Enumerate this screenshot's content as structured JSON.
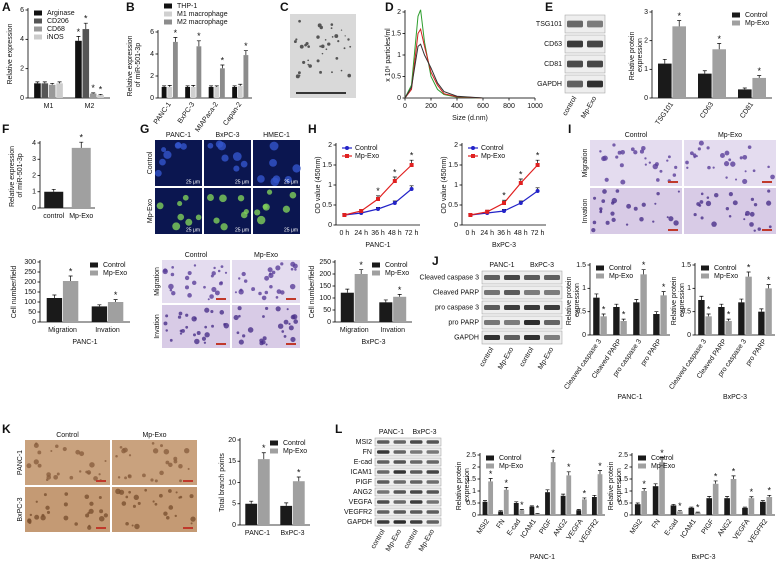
{
  "panel_labels": [
    "A",
    "B",
    "C",
    "D",
    "E",
    "F",
    "G",
    "H",
    "I",
    "J",
    "K",
    "L"
  ],
  "image_panels": [
    {
      "columns": [
        "PANC-1",
        "BxPC-3",
        "HMEC-1"
      ],
      "rows": [
        "Control",
        "Mp-Exo"
      ],
      "scale_label": "25 μm"
    },
    {
      "columns": [
        "Control",
        "Mp-Exo"
      ],
      "rows": [
        "Migration",
        "Invation"
      ]
    },
    {
      "columns": [
        "Control",
        "Mp-Exo"
      ],
      "rows": [
        "Migration",
        "Invation"
      ]
    },
    {
      "columns": [
        "Control",
        "Mp-Exo"
      ],
      "rows": [
        "PANC-1",
        "BxPC-3"
      ]
    }
  ],
  "blots": [
    {
      "rows": [
        "TSG101",
        "CD63",
        "CD81",
        "GAPDH"
      ],
      "lanes": [
        "control",
        "Mp-Exo"
      ]
    },
    {
      "groups": [
        "PANC-1",
        "BxPC-3"
      ],
      "rows": [
        "Cleaved caspase 3",
        "Cleaved PARP",
        "pro caspase 3",
        "pro PARP",
        "GAPDH"
      ],
      "lanes": [
        "control",
        "Mp-Exo",
        "control",
        "Mp-Exo"
      ]
    },
    {
      "groups": [
        "PANC-1",
        "BxPC-3"
      ],
      "rows": [
        "MSI2",
        "FN",
        "E-cad",
        "ICAM1",
        "PIGF",
        "ANG2",
        "VEGFA",
        "VEGFR2",
        "GAPDH"
      ],
      "lanes": [
        "control",
        "Mp-Exo",
        "control",
        "Mp-Exo"
      ]
    }
  ],
  "chart_data": [
    {
      "type": "bar",
      "ylabel": "Relative expression",
      "categories": [
        "M1",
        "M2"
      ],
      "ylim": [
        0,
        6
      ],
      "yticks": [
        0,
        2,
        4,
        6
      ],
      "legend": "upper-left",
      "series": [
        {
          "name": "Arginase",
          "color": "#111111",
          "values": [
            1,
            3.9
          ],
          "errors": [
            0.1,
            0.3
          ],
          "significance": [
            null,
            "*"
          ]
        },
        {
          "name": "CD206",
          "color": "#555555",
          "values": [
            1,
            4.7
          ],
          "errors": [
            0.1,
            0.4
          ],
          "significance": [
            null,
            "*"
          ]
        },
        {
          "name": "CD68",
          "color": "#999999",
          "values": [
            0.9,
            0.3
          ],
          "errors": [
            0.1,
            0.05
          ],
          "significance": [
            null,
            "*"
          ]
        },
        {
          "name": "iNOS",
          "color": "#cccccc",
          "values": [
            1,
            0.2
          ],
          "errors": [
            0.1,
            0.05
          ],
          "significance": [
            null,
            "*"
          ]
        }
      ]
    },
    {
      "type": "bar",
      "ylabel": "Relative expression of miR-501-3p",
      "categories": [
        "PANC-1",
        "BxPC-3",
        "MIAPaca-2",
        "Capan-2"
      ],
      "ylim": [
        0,
        6
      ],
      "yticks": [
        0,
        2,
        4,
        6
      ],
      "legend": "top",
      "series": [
        {
          "name": "THP-1",
          "color": "#111111",
          "values": [
            1,
            1,
            1,
            1
          ],
          "errors": [
            0.1,
            0.1,
            0.1,
            0.1
          ]
        },
        {
          "name": "M1 macrophage",
          "color": "#d0d0d0",
          "values": [
            1,
            1,
            1,
            1.1
          ],
          "errors": [
            0.15,
            0.15,
            0.1,
            0.15
          ]
        },
        {
          "name": "M2 macrophage",
          "color": "#8c8c8c",
          "values": [
            5.1,
            4.7,
            2.7,
            3.9
          ],
          "errors": [
            0.4,
            0.5,
            0.3,
            0.4
          ],
          "significance": [
            "*",
            "*",
            "*",
            "*"
          ]
        }
      ]
    },
    {
      "type": "line",
      "ylabel": "x 10⁶ particles/ml",
      "xlabel": "Size (d.nm)",
      "x": [
        0,
        50,
        100,
        120,
        150,
        200,
        250,
        300,
        400,
        600,
        1000
      ],
      "xlim": [
        0,
        1000
      ],
      "xticks": [
        0,
        200,
        400,
        600,
        800,
        1000
      ],
      "ylim": [
        0,
        2
      ],
      "yticks": [
        0,
        0.5,
        1,
        1.5,
        2
      ],
      "series": [
        {
          "color": "#2e9e2e",
          "values": [
            0,
            0.3,
            1.9,
            2.05,
            1.3,
            0.5,
            0.2,
            0.08,
            0.02,
            0,
            0
          ]
        },
        {
          "color": "#d02020",
          "values": [
            0,
            0.2,
            1.5,
            1.6,
            1.2,
            0.6,
            0.3,
            0.1,
            0.03,
            0,
            0
          ]
        },
        {
          "color": "#333333",
          "values": [
            0,
            0.25,
            1.2,
            1.25,
            1,
            0.7,
            0.35,
            0.15,
            0.04,
            0,
            0
          ]
        }
      ]
    },
    {
      "type": "bar",
      "ylabel": "Relative protein expression",
      "categories": [
        "TSG101",
        "CD63",
        "CD81"
      ],
      "ylim": [
        0,
        3
      ],
      "yticks": [
        0,
        1,
        2,
        3
      ],
      "legend": "upper-right",
      "series": [
        {
          "name": "Control",
          "color": "#1a1a1a",
          "values": [
            1.2,
            0.85,
            0.3
          ],
          "errors": [
            0.15,
            0.1,
            0.05
          ]
        },
        {
          "name": "Mp-Exo",
          "color": "#a0a0a0",
          "values": [
            2.5,
            1.7,
            0.7
          ],
          "errors": [
            0.2,
            0.2,
            0.08
          ],
          "significance": [
            "*",
            "*",
            "*"
          ]
        }
      ]
    },
    {
      "type": "bar",
      "ylabel": "Relative expression of miR-501-3p",
      "categories": [
        "control",
        "Mp-Exo"
      ],
      "ylim": [
        0,
        4
      ],
      "yticks": [
        0,
        1,
        2,
        3,
        4
      ],
      "series": [
        {
          "colors": [
            "#1a1a1a",
            "#a0a0a0"
          ],
          "values": [
            1,
            3.7
          ],
          "errors": [
            0.15,
            0.35
          ],
          "significance": [
            null,
            "*"
          ]
        }
      ]
    },
    {
      "type": "line",
      "ylabel": "OD value (450nm)",
      "xlabel": "PANC-1",
      "categories": [
        "0 h",
        "24 h",
        "36 h",
        "48 h",
        "72 h"
      ],
      "ylim": [
        0,
        2
      ],
      "yticks": [
        0,
        0.5,
        1,
        1.5,
        2
      ],
      "legend": "upper-left",
      "series": [
        {
          "name": "Control",
          "color": "#2323c8",
          "values": [
            0.25,
            0.3,
            0.4,
            0.55,
            0.9
          ],
          "errors": [
            0.03,
            0.03,
            0.04,
            0.05,
            0.08
          ]
        },
        {
          "name": "Mp-Exo",
          "color": "#e02020",
          "values": [
            0.25,
            0.35,
            0.65,
            1.1,
            1.5
          ],
          "errors": [
            0.03,
            0.04,
            0.08,
            0.1,
            0.12
          ],
          "significance": [
            null,
            null,
            "*",
            "*",
            "*"
          ]
        }
      ]
    },
    {
      "type": "line",
      "ylabel": "OD value (450nm)",
      "xlabel": "BxPC-3",
      "categories": [
        "0 h",
        "24 h",
        "36 h",
        "48 h",
        "72 h"
      ],
      "ylim": [
        0,
        2
      ],
      "yticks": [
        0,
        0.5,
        1,
        1.5,
        2
      ],
      "legend": "upper-left",
      "series": [
        {
          "name": "Control",
          "color": "#2323c8",
          "values": [
            0.25,
            0.3,
            0.35,
            0.55,
            0.85
          ],
          "errors": [
            0.03,
            0.03,
            0.04,
            0.05,
            0.08
          ]
        },
        {
          "name": "Mp-Exo",
          "color": "#e02020",
          "values": [
            0.25,
            0.33,
            0.55,
            1.05,
            1.5
          ],
          "errors": [
            0.03,
            0.04,
            0.07,
            0.1,
            0.12
          ],
          "significance": [
            null,
            null,
            "*",
            "*",
            "*"
          ]
        }
      ]
    },
    {
      "type": "bar",
      "ylabel": "Cell number/field",
      "xlabel": "PANC-1",
      "categories": [
        "Migration",
        "Invation"
      ],
      "ylim": [
        0,
        300
      ],
      "yticks": [
        0,
        50,
        100,
        150,
        200,
        250,
        300
      ],
      "legend": "upper-right",
      "series": [
        {
          "name": "Control",
          "color": "#1a1a1a",
          "values": [
            120,
            78
          ],
          "errors": [
            15,
            8
          ]
        },
        {
          "name": "Mp-Exo",
          "color": "#a0a0a0",
          "values": [
            205,
            100
          ],
          "errors": [
            25,
            12
          ],
          "significance": [
            "*",
            "*"
          ]
        }
      ]
    },
    {
      "type": "bar",
      "ylabel": "Cell number/field",
      "xlabel": "BxPC-3",
      "categories": [
        "Migration",
        "Invation"
      ],
      "ylim": [
        0,
        250
      ],
      "yticks": [
        0,
        50,
        100,
        150,
        200,
        250
      ],
      "legend": "upper-right",
      "series": [
        {
          "name": "Control",
          "color": "#1a1a1a",
          "values": [
            122,
            82
          ],
          "errors": [
            15,
            10
          ]
        },
        {
          "name": "Mp-Exo",
          "color": "#a0a0a0",
          "values": [
            200,
            105
          ],
          "errors": [
            18,
            10
          ],
          "significance": [
            "*",
            "*"
          ]
        }
      ]
    },
    {
      "type": "bar",
      "ylabel": "Relative protein expression",
      "xlabel": "PANC-1",
      "categories": [
        "Cleaved caspase 3",
        "Cleaved PARP",
        "pro caspase 3",
        "pro PARP"
      ],
      "ylim": [
        0,
        1.5
      ],
      "yticks": [
        0,
        0.5,
        1,
        1.5
      ],
      "legend": "upper-left",
      "series": [
        {
          "name": "Control",
          "color": "#1a1a1a",
          "values": [
            0.8,
            0.6,
            0.7,
            0.45
          ],
          "errors": [
            0.08,
            0.06,
            0.06,
            0.05
          ]
        },
        {
          "name": "Mp-Exo",
          "color": "#a0a0a0",
          "values": [
            0.4,
            0.3,
            1.3,
            0.85
          ],
          "errors": [
            0.05,
            0.04,
            0.1,
            0.08
          ],
          "significance": [
            "*",
            "*",
            "*",
            "*"
          ]
        }
      ]
    },
    {
      "type": "bar",
      "ylabel": "Relative protein expression",
      "xlabel": "BxPC-3",
      "categories": [
        "Cleaved caspase 3",
        "Cleaved PARP",
        "pro caspase 3",
        "pro PARP"
      ],
      "ylim": [
        0,
        1.5
      ],
      "yticks": [
        0,
        0.5,
        1,
        1.5
      ],
      "legend": "upper-left",
      "series": [
        {
          "name": "Control",
          "color": "#1a1a1a",
          "values": [
            0.75,
            0.6,
            0.7,
            0.5
          ],
          "errors": [
            0.08,
            0.06,
            0.07,
            0.06
          ]
        },
        {
          "name": "Mp-Exo",
          "color": "#a0a0a0",
          "values": [
            0.4,
            0.3,
            1.25,
            1
          ],
          "errors": [
            0.05,
            0.04,
            0.1,
            0.08
          ],
          "significance": [
            "*",
            "*",
            "*",
            "*"
          ]
        }
      ]
    },
    {
      "type": "bar",
      "ylabel": "Total branch points",
      "categories": [
        "PANC-1",
        "BxPC-3"
      ],
      "ylim": [
        0,
        20
      ],
      "yticks": [
        0,
        5,
        10,
        15,
        20
      ],
      "legend": "upper-right",
      "series": [
        {
          "name": "Control",
          "color": "#1a1a1a",
          "values": [
            5,
            4.5
          ],
          "errors": [
            0.6,
            0.7
          ]
        },
        {
          "name": "Mp-Exo",
          "color": "#a0a0a0",
          "values": [
            15.5,
            10.3
          ],
          "errors": [
            1.5,
            1
          ],
          "significance": [
            "*",
            "*"
          ]
        }
      ]
    },
    {
      "type": "bar",
      "ylabel": "Relative protein expression",
      "xlabel": "PANC-1",
      "categories": [
        "MSI2",
        "FN",
        "E-cad",
        "ICAM1",
        "PIGF",
        "ANG2",
        "VEGFA",
        "VEGFR2"
      ],
      "ylim": [
        0,
        2.5
      ],
      "yticks": [
        0,
        0.5,
        1,
        1.5,
        2,
        2.5
      ],
      "legend": "upper-left",
      "series": [
        {
          "name": "Control",
          "color": "#1a1a1a",
          "values": [
            0.55,
            0.15,
            0.5,
            0.35,
            0.95,
            0.8,
            0.2,
            0.75
          ],
          "errors": [
            0.05,
            0.03,
            0.05,
            0.03,
            0.1,
            0.07,
            0.03,
            0.07
          ]
        },
        {
          "name": "Mp-Exo",
          "color": "#a0a0a0",
          "values": [
            1.4,
            1.05,
            0.2,
            0.05,
            2.2,
            1.65,
            0.65,
            1.7
          ],
          "errors": [
            0.12,
            0.1,
            0.03,
            0.02,
            0.2,
            0.15,
            0.06,
            0.15
          ],
          "significance": [
            "*",
            "*",
            "*",
            "*",
            "*",
            "*",
            "*",
            "*"
          ]
        }
      ]
    },
    {
      "type": "bar",
      "ylabel": "Relative protein expression",
      "xlabel": "BxPC-3",
      "categories": [
        "MSI2",
        "FN",
        "E-cad",
        "ICAM1",
        "PIGF",
        "ANG2",
        "VEGFA",
        "VEGFR2"
      ],
      "ylim": [
        0,
        2.5
      ],
      "yticks": [
        0,
        0.5,
        1,
        1.5,
        2,
        2.5
      ],
      "legend": "upper-left",
      "series": [
        {
          "name": "Control",
          "color": "#1a1a1a",
          "values": [
            0.45,
            1.2,
            0.4,
            0.3,
            0.7,
            0.7,
            0.3,
            0.55
          ],
          "errors": [
            0.05,
            0.1,
            0.04,
            0.03,
            0.07,
            0.07,
            0.03,
            0.05
          ]
        },
        {
          "name": "Mp-Exo",
          "color": "#a0a0a0",
          "values": [
            1,
            2.2,
            0.15,
            0.1,
            1.3,
            1.5,
            0.7,
            0.75
          ],
          "errors": [
            0.1,
            0.2,
            0.03,
            0.02,
            0.12,
            0.13,
            0.06,
            0.07
          ],
          "significance": [
            "*",
            "*",
            "*",
            "*",
            "*",
            "*",
            "*",
            "*"
          ]
        }
      ]
    }
  ]
}
